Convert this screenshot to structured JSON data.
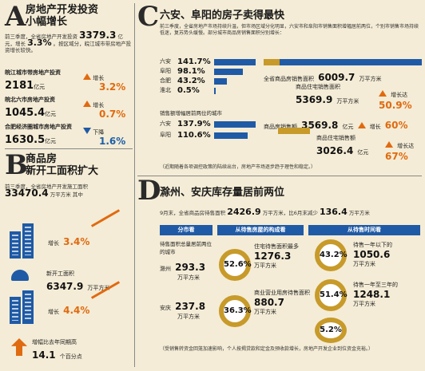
{
  "a": {
    "letter": "A",
    "title1": "房地产开发投资",
    "title2": "小幅增长",
    "intro1": "前三季度，全省房地产开发投资",
    "value": "3379.3",
    "unit": "亿元，增长",
    "growth": "3.3%",
    "intro2": "。按区域分，皖江城市带房地产投资增长较快。",
    "items": [
      {
        "label": "皖江城市带房地产投资",
        "value": "2181",
        "unit": "亿元",
        "dir_label": "增长",
        "pct": "3.2%",
        "dir": "up"
      },
      {
        "label": "皖北六市房地产投资",
        "value": "1045.4",
        "unit": "亿元",
        "dir_label": "增长",
        "pct": "0.7%",
        "dir": "up"
      },
      {
        "label": "合肥经济圈城市房地产投资",
        "value": "1630.5",
        "unit": "亿元",
        "dir_label": "下降",
        "pct": "1.6%",
        "dir": "down"
      }
    ]
  },
  "b": {
    "letter": "B",
    "title1": "商品房",
    "title2": "新开工面积扩大",
    "intro": "前三季度，全省房地产开发施工面积",
    "value": "33470.4",
    "unit": "万平方米",
    "suffix": "其中",
    "growth1_label": "增长",
    "growth1": "3.4%",
    "new_label": "新开工面积",
    "new_value": "6347.9",
    "new_unit": "万平方米",
    "growth2_label": "增长",
    "growth2": "4.4%",
    "compare_label": "增幅比去年同期高",
    "compare_value": "14.1",
    "compare_unit": "个百分点"
  },
  "c": {
    "letter": "C",
    "title": "六安、阜阳的房子卖得最快",
    "intro": "前三季度，全省房地产市场持续升温，但市场区域分化明显，六安市和阜阳市销售面积增幅居前两位，个别市销售市场持续低迷，复苏势头缓慢。部分城市商品房销售面积分别增长：",
    "cities": [
      {
        "name": "六安",
        "pct": "141.7%",
        "value": 141.7
      },
      {
        "name": "阜阳",
        "pct": "98.1%",
        "value": 98.1
      },
      {
        "name": "合肥",
        "pct": "43.2%",
        "value": 43.2
      },
      {
        "name": "淮北",
        "pct": "0.5%",
        "value": 0.5
      }
    ],
    "total_area_label": "全省商品房销售面积",
    "total_area": "6009.7",
    "total_area_unit": "万平方米",
    "res_area_label": "商品住宅销售面积",
    "res_area": "5369.9",
    "res_area_unit": "万平方米",
    "res_growth_label": "增长达",
    "res_growth": "50.9%",
    "amount_head": "销售额增幅居前两位的城市",
    "amount_cities": [
      {
        "name": "六安",
        "pct": "137.9%",
        "value": 137.9
      },
      {
        "name": "阜阳",
        "pct": "110.6%",
        "value": 110.6
      }
    ],
    "sales_label": "商品房销售额",
    "sales": "3569.8",
    "sales_unit": "亿元",
    "sales_growth_label": "增长",
    "sales_growth": "60%",
    "res_sales_label": "商品住宅销售额",
    "res_sales": "3026.4",
    "res_sales_unit": "亿元",
    "res_sales_growth_label": "增长达",
    "res_sales_growth": "67%",
    "note": "（近期随着各项调控政策的陆续出台，房地产市场逐步趋于理性和稳定。）"
  },
  "d": {
    "letter": "D",
    "title": "滁州、安庆库存量居前两位",
    "intro1": "9月末，全省商品房待售面积",
    "stock": "2426.9",
    "stock_unit": "万平方米",
    "intro2": "，比6月末减少",
    "decrease": "136.4",
    "decrease_unit": "万平方米",
    "tab1": "分市看",
    "tab2": "从待售房屋的构成看",
    "tab3": "从待售时间看",
    "city_head": "待售面积总量居前两位的城市",
    "city1": "滁州",
    "city1_value": "293.3",
    "city1_unit": "万平方米",
    "city2": "安庆",
    "city2_value": "237.8",
    "city2_unit": "万平方米",
    "comp1_pct": "52.6%",
    "comp1_label": "住宅待售面积最多",
    "comp1_value": "1276.3",
    "comp1_unit": "万平方米",
    "comp2_pct": "36.3%",
    "comp2_label": "商业营业用房待售面积",
    "comp2_value": "880.7",
    "comp2_unit": "万平方米",
    "time1_pct": "43.2%",
    "time1_label": "待售一年以下的",
    "time1_value": "1050.6",
    "time1_unit": "万平方米",
    "time2_pct": "51.4%",
    "time2_label": "待售一年至三年的",
    "time2_value": "1248.1",
    "time2_unit": "万平方米",
    "time3_pct": "5.2%",
    "note": "（受销售转资金回笼加速影响，个人按揭贷款和定金及预收款增长，房地产开发企业到位资金充裕。）"
  }
}
